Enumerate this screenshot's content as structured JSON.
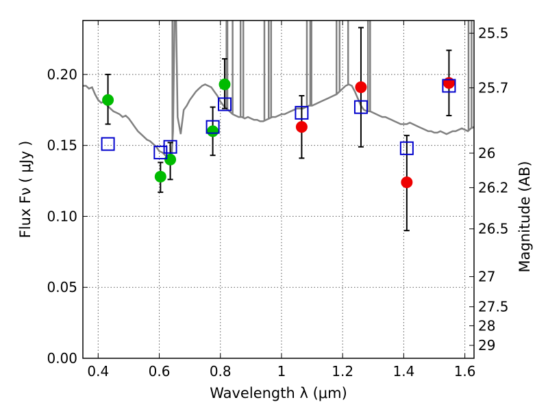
{
  "chart_data": {
    "type": "scatter",
    "xlabel": "Wavelength  λ (μm)",
    "ylabel": "Flux  Fν  ( μJy )",
    "ylabel_right": "Magnitude (AB)",
    "xlim": [
      0.35,
      1.63
    ],
    "ylim": [
      0.0,
      0.238
    ],
    "grid": true,
    "x_ticks": [
      {
        "v": 0.4,
        "t": "0.4"
      },
      {
        "v": 0.6,
        "t": "0.6"
      },
      {
        "v": 0.8,
        "t": "0.8"
      },
      {
        "v": 1.0,
        "t": "1"
      },
      {
        "v": 1.2,
        "t": "1.2"
      },
      {
        "v": 1.4,
        "t": "1.4"
      },
      {
        "v": 1.6,
        "t": "1.6"
      }
    ],
    "y_ticks": [
      {
        "v": 0.0,
        "t": "0.00"
      },
      {
        "v": 0.05,
        "t": "0.05"
      },
      {
        "v": 0.1,
        "t": "0.10"
      },
      {
        "v": 0.15,
        "t": "0.15"
      },
      {
        "v": 0.2,
        "t": "0.20"
      }
    ],
    "mag_ticks": [
      {
        "m": 25.5,
        "t": "25.5"
      },
      {
        "m": 25.7,
        "t": "25.7"
      },
      {
        "m": 26.0,
        "t": "26"
      },
      {
        "m": 26.2,
        "t": "26.2"
      },
      {
        "m": 26.5,
        "t": "26.5"
      },
      {
        "m": 27.0,
        "t": "27"
      },
      {
        "m": 27.5,
        "t": "27.5"
      },
      {
        "m": 28.0,
        "t": "28"
      },
      {
        "m": 29.0,
        "t": "29"
      }
    ],
    "series": [
      {
        "kind": "line",
        "color": "#808080",
        "points": [
          [
            0.35,
            0.192
          ],
          [
            0.36,
            0.192
          ],
          [
            0.37,
            0.19
          ],
          [
            0.38,
            0.191
          ],
          [
            0.39,
            0.186
          ],
          [
            0.4,
            0.182
          ],
          [
            0.41,
            0.18
          ],
          [
            0.42,
            0.181
          ],
          [
            0.43,
            0.178
          ],
          [
            0.44,
            0.176
          ],
          [
            0.45,
            0.174
          ],
          [
            0.46,
            0.173
          ],
          [
            0.47,
            0.172
          ],
          [
            0.48,
            0.17
          ],
          [
            0.49,
            0.171
          ],
          [
            0.5,
            0.169
          ],
          [
            0.51,
            0.166
          ],
          [
            0.52,
            0.163
          ],
          [
            0.53,
            0.16
          ],
          [
            0.54,
            0.158
          ],
          [
            0.55,
            0.156
          ],
          [
            0.56,
            0.154
          ],
          [
            0.57,
            0.153
          ],
          [
            0.58,
            0.151
          ],
          [
            0.59,
            0.149
          ],
          [
            0.6,
            0.146
          ],
          [
            0.61,
            0.145
          ],
          [
            0.62,
            0.143
          ],
          [
            0.63,
            0.142
          ],
          [
            0.64,
            0.141
          ],
          [
            0.645,
            0.16
          ],
          [
            0.65,
            0.238
          ],
          [
            0.655,
            0.238
          ],
          [
            0.66,
            0.17
          ],
          [
            0.67,
            0.158
          ],
          [
            0.68,
            0.175
          ],
          [
            0.69,
            0.178
          ],
          [
            0.7,
            0.182
          ],
          [
            0.71,
            0.185
          ],
          [
            0.72,
            0.188
          ],
          [
            0.73,
            0.19
          ],
          [
            0.74,
            0.192
          ],
          [
            0.75,
            0.193
          ],
          [
            0.76,
            0.192
          ],
          [
            0.77,
            0.191
          ],
          [
            0.78,
            0.188
          ],
          [
            0.79,
            0.185
          ],
          [
            0.8,
            0.181
          ],
          [
            0.81,
            0.178
          ],
          [
            0.82,
            0.176
          ],
          [
            0.83,
            0.174
          ],
          [
            0.84,
            0.172
          ],
          [
            0.85,
            0.171
          ],
          [
            0.86,
            0.17
          ],
          [
            0.87,
            0.17
          ],
          [
            0.88,
            0.169
          ],
          [
            0.89,
            0.17
          ],
          [
            0.9,
            0.169
          ],
          [
            0.91,
            0.168
          ],
          [
            0.92,
            0.168
          ],
          [
            0.93,
            0.167
          ],
          [
            0.94,
            0.167
          ],
          [
            0.95,
            0.168
          ],
          [
            0.96,
            0.169
          ],
          [
            0.97,
            0.17
          ],
          [
            0.98,
            0.17
          ],
          [
            0.99,
            0.171
          ],
          [
            1.0,
            0.172
          ],
          [
            1.01,
            0.172
          ],
          [
            1.02,
            0.173
          ],
          [
            1.03,
            0.174
          ],
          [
            1.04,
            0.175
          ],
          [
            1.05,
            0.176
          ],
          [
            1.06,
            0.176
          ],
          [
            1.07,
            0.176
          ],
          [
            1.08,
            0.177
          ],
          [
            1.09,
            0.178
          ],
          [
            1.1,
            0.178
          ],
          [
            1.11,
            0.179
          ],
          [
            1.12,
            0.18
          ],
          [
            1.13,
            0.181
          ],
          [
            1.14,
            0.182
          ],
          [
            1.15,
            0.183
          ],
          [
            1.16,
            0.184
          ],
          [
            1.17,
            0.185
          ],
          [
            1.18,
            0.186
          ],
          [
            1.19,
            0.188
          ],
          [
            1.2,
            0.19
          ],
          [
            1.21,
            0.192
          ],
          [
            1.22,
            0.193
          ],
          [
            1.23,
            0.192
          ],
          [
            1.24,
            0.188
          ],
          [
            1.25,
            0.183
          ],
          [
            1.26,
            0.178
          ],
          [
            1.27,
            0.175
          ],
          [
            1.28,
            0.174
          ],
          [
            1.29,
            0.174
          ],
          [
            1.3,
            0.173
          ],
          [
            1.31,
            0.172
          ],
          [
            1.32,
            0.171
          ],
          [
            1.33,
            0.17
          ],
          [
            1.34,
            0.17
          ],
          [
            1.35,
            0.169
          ],
          [
            1.36,
            0.168
          ],
          [
            1.37,
            0.167
          ],
          [
            1.38,
            0.166
          ],
          [
            1.39,
            0.165
          ],
          [
            1.4,
            0.165
          ],
          [
            1.41,
            0.165
          ],
          [
            1.42,
            0.166
          ],
          [
            1.43,
            0.165
          ],
          [
            1.44,
            0.164
          ],
          [
            1.45,
            0.163
          ],
          [
            1.46,
            0.162
          ],
          [
            1.47,
            0.161
          ],
          [
            1.48,
            0.16
          ],
          [
            1.49,
            0.16
          ],
          [
            1.5,
            0.159
          ],
          [
            1.51,
            0.159
          ],
          [
            1.52,
            0.16
          ],
          [
            1.53,
            0.159
          ],
          [
            1.54,
            0.158
          ],
          [
            1.55,
            0.159
          ],
          [
            1.56,
            0.16
          ],
          [
            1.57,
            0.16
          ],
          [
            1.58,
            0.161
          ],
          [
            1.59,
            0.162
          ],
          [
            1.6,
            0.161
          ],
          [
            1.61,
            0.16
          ],
          [
            1.62,
            0.162
          ],
          [
            1.63,
            0.163
          ]
        ],
        "spikes": [
          [
            0.643,
            0.238
          ],
          [
            0.654,
            0.238
          ],
          [
            0.82,
            0.238
          ],
          [
            0.823,
            0.238
          ],
          [
            0.84,
            0.238
          ],
          [
            0.866,
            0.238
          ],
          [
            0.875,
            0.238
          ],
          [
            0.944,
            0.238
          ],
          [
            0.958,
            0.238
          ],
          [
            0.966,
            0.238
          ],
          [
            1.083,
            0.238
          ],
          [
            1.094,
            0.238
          ],
          [
            1.098,
            0.238
          ],
          [
            1.18,
            0.238
          ],
          [
            1.19,
            0.238
          ],
          [
            1.218,
            0.238
          ],
          [
            1.283,
            0.238
          ],
          [
            1.29,
            0.238
          ],
          [
            1.612,
            0.238
          ],
          [
            1.622,
            0.238
          ]
        ]
      },
      {
        "kind": "points",
        "marker": "circle",
        "color": "#00bb00",
        "points": [
          {
            "x": 0.432,
            "y": 0.182,
            "err": [
              0.165,
              0.2
            ]
          },
          {
            "x": 0.604,
            "y": 0.128,
            "err": [
              0.117,
              0.138
            ]
          },
          {
            "x": 0.636,
            "y": 0.14,
            "err": [
              0.126,
              0.152
            ]
          },
          {
            "x": 0.775,
            "y": 0.16,
            "err": [
              0.143,
              0.177
            ]
          },
          {
            "x": 0.814,
            "y": 0.193,
            "err": [
              0.176,
              0.211
            ]
          }
        ]
      },
      {
        "kind": "points",
        "marker": "circle",
        "color": "#ee0000",
        "points": [
          {
            "x": 1.066,
            "y": 0.163,
            "err": [
              0.141,
              0.185
            ]
          },
          {
            "x": 1.26,
            "y": 0.191,
            "err": [
              0.149,
              0.233
            ]
          },
          {
            "x": 1.41,
            "y": 0.124,
            "err": [
              0.09,
              0.157
            ]
          },
          {
            "x": 1.548,
            "y": 0.194,
            "err": [
              0.171,
              0.217
            ]
          }
        ]
      },
      {
        "kind": "points",
        "marker": "square",
        "color": "#0000cc",
        "points": [
          {
            "x": 0.432,
            "y": 0.151
          },
          {
            "x": 0.604,
            "y": 0.145
          },
          {
            "x": 0.636,
            "y": 0.149
          },
          {
            "x": 0.775,
            "y": 0.163
          },
          {
            "x": 0.814,
            "y": 0.179
          },
          {
            "x": 1.066,
            "y": 0.173
          },
          {
            "x": 1.26,
            "y": 0.177
          },
          {
            "x": 1.41,
            "y": 0.148
          },
          {
            "x": 1.548,
            "y": 0.192
          }
        ]
      }
    ]
  }
}
